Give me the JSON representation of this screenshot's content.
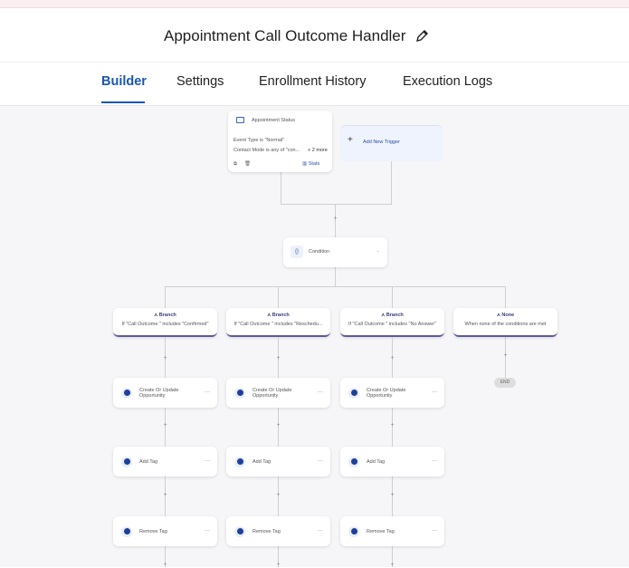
{
  "header": {
    "title": "Appointment Call Outcome Handler",
    "edit_icon": "pencil-icon"
  },
  "tabs": [
    {
      "label": "Builder",
      "active": true
    },
    {
      "label": "Settings"
    },
    {
      "label": "Enrollment History"
    },
    {
      "label": "Execution Logs"
    }
  ],
  "accent": "#1a56b8",
  "trigger": {
    "title": "Appointment Status",
    "filter1": "Event Type is \"Normal\"",
    "filter2": "Contact Mode is any of \"con...",
    "more": "+ 2 more",
    "stats": "Stats"
  },
  "add_trigger": "Add New Trigger",
  "condition": {
    "label": "Condition"
  },
  "branches": [
    {
      "title": "Branch",
      "desc": "If \"Call Outcome \" includes \"Confirmed\""
    },
    {
      "title": "Branch",
      "desc": "If \"Call Outcome \" includes \"Reschedu..."
    },
    {
      "title": "Branch",
      "desc": "If \"Call Outcome \" includes \"No Answer\""
    },
    {
      "title": "None",
      "desc": "When none of the conditions are met"
    }
  ],
  "actions": [
    "Create Or Update Opportunity",
    "Add Tag",
    "Remove Tag"
  ],
  "end_label": "END"
}
